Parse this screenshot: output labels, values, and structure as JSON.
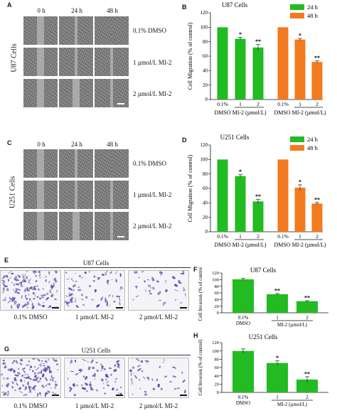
{
  "panels": {
    "A": {
      "letter": "A",
      "cell_line": "U87 Cells",
      "times": [
        "0 h",
        "24 h",
        "48 h"
      ],
      "rows": [
        "0.1% DMSO",
        "1 µmol/L MI-2",
        "2 µmol/L MI-2"
      ]
    },
    "C": {
      "letter": "C",
      "cell_line": "U251 Cells",
      "times": [
        "0 h",
        "24 h",
        "48 h"
      ],
      "rows": [
        "0.1% DMSO",
        "1 µmol/L MI-2",
        "2 µmol/L MI-2"
      ]
    },
    "E": {
      "letter": "E",
      "title": "U87 Cells",
      "labels": [
        "0.1% DMSO",
        "1 µmol/L MI-2",
        "2 µmol/L MI-2"
      ]
    },
    "G": {
      "letter": "G",
      "title": "U251 Cells",
      "labels": [
        "0.1% DMSO",
        "1 µmol/L MI-2",
        "2 µmol/L MI-2"
      ]
    }
  },
  "chart_data": [
    {
      "panel": "B",
      "type": "bar",
      "title": "U87 Cells",
      "ylabel": "Cell Migration (% of control)",
      "ylim": [
        0,
        120
      ],
      "yticks": [
        0,
        20,
        40,
        60,
        80,
        100,
        120
      ],
      "categories": [
        "0.1%",
        "1",
        "2"
      ],
      "group_label": "MI-2 (µmol/L)",
      "dmso_label": "DMSO",
      "legend_position": "top-right",
      "series": [
        {
          "name": "24 h",
          "color": "#22bb22",
          "values": [
            100,
            84,
            72
          ],
          "errors": [
            0,
            2,
            4
          ],
          "sig": [
            "",
            "*",
            "**"
          ]
        },
        {
          "name": "48 h",
          "color": "#f47a20",
          "values": [
            100,
            83,
            52
          ],
          "errors": [
            0,
            1.5,
            1.5
          ],
          "sig": [
            "",
            "*",
            "**"
          ]
        }
      ]
    },
    {
      "panel": "D",
      "type": "bar",
      "title": "U251 Cells",
      "ylabel": "Cell Migration (% of control)",
      "ylim": [
        0,
        120
      ],
      "yticks": [
        0,
        20,
        40,
        60,
        80,
        100,
        120
      ],
      "categories": [
        "0.1%",
        "1",
        "2"
      ],
      "group_label": "MI-2 (µmol/L)",
      "dmso_label": "DMSO",
      "legend_position": "top-right",
      "series": [
        {
          "name": "24 h",
          "color": "#22bb22",
          "values": [
            100,
            77,
            42
          ],
          "errors": [
            0,
            2,
            3
          ],
          "sig": [
            "",
            "*",
            "**"
          ]
        },
        {
          "name": "48 h",
          "color": "#f47a20",
          "values": [
            100,
            61,
            39
          ],
          "errors": [
            0,
            4,
            1.5
          ],
          "sig": [
            "",
            "*",
            "**"
          ]
        }
      ]
    },
    {
      "panel": "F",
      "type": "bar",
      "title": "U87 Cells",
      "ylabel": "Cell Invasion (% of control)",
      "ylim": [
        0,
        120
      ],
      "yticks": [
        0,
        20,
        40,
        60,
        80,
        100,
        120
      ],
      "categories": [
        "0.1%",
        "1",
        "2"
      ],
      "xlabels_bottom": [
        "DMSO",
        "MI-2 (µmol/L)"
      ],
      "series": [
        {
          "name": "",
          "color": "#22bb22",
          "values": [
            101,
            56,
            35
          ],
          "errors": [
            3,
            2,
            1.5
          ],
          "sig": [
            "",
            "**",
            "**"
          ]
        }
      ]
    },
    {
      "panel": "H",
      "type": "bar",
      "title": "U251 Cells",
      "ylabel": "Cell Invasion (% of control)",
      "ylim": [
        0,
        120
      ],
      "yticks": [
        0,
        20,
        40,
        60,
        80,
        100,
        120
      ],
      "categories": [
        "0.1%",
        "1",
        "2"
      ],
      "xlabels_bottom": [
        "DMSO",
        "MI-2 (µmol/L)"
      ],
      "series": [
        {
          "name": "",
          "color": "#22bb22",
          "values": [
            100,
            71,
            31
          ],
          "errors": [
            5,
            5,
            7
          ],
          "sig": [
            "",
            "*",
            "**"
          ]
        }
      ]
    }
  ]
}
